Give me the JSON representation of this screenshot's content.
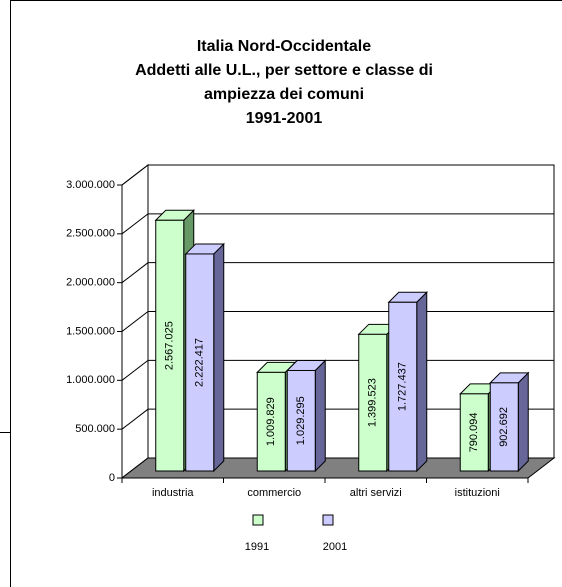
{
  "chart_data": {
    "type": "bar3d",
    "title": [
      "Italia Nord-Occidentale",
      "Addetti alle U.L., per settore e classe di",
      "ampiezza dei comuni",
      "1991-2001"
    ],
    "categories": [
      "industria",
      "commercio",
      "altri servizi",
      "istituzioni"
    ],
    "series": [
      {
        "name": "1991",
        "color": "#ccffcc",
        "values": [
          2567025,
          1009829,
          1399523,
          790094
        ],
        "value_labels": [
          "2.567.025",
          "1.009.829",
          "1.399.523",
          "790.094"
        ]
      },
      {
        "name": "2001",
        "color": "#ccccff",
        "values": [
          2222417,
          1029295,
          1727437,
          902692
        ],
        "value_labels": [
          "2.222.417",
          "1.029.295",
          "1.727.437",
          "902.692"
        ]
      }
    ],
    "ylim": [
      0,
      3000000
    ],
    "yticks": [
      0,
      {
        "value": 500000,
        "label": "500.000"
      },
      {
        "value": 1000000,
        "label": "1.000.000"
      },
      {
        "value": 1500000,
        "label": "1.500.000"
      },
      {
        "value": 2000000,
        "label": "2.000.000"
      },
      {
        "value": 2500000,
        "label": "2.500.000"
      },
      {
        "value": 3000000,
        "label": "3.000.000"
      }
    ],
    "grid": true,
    "legend": "bottom"
  }
}
